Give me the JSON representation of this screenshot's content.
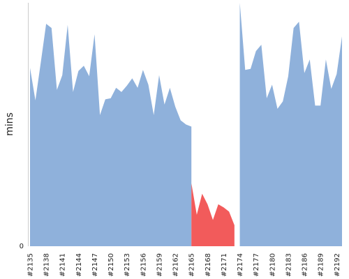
{
  "chart_data": {
    "type": "area",
    "title": "",
    "xlabel": "",
    "ylabel": "mins",
    "y_ticks": [
      {
        "value": 0,
        "label": "0"
      }
    ],
    "ylim": [
      0,
      232
    ],
    "grid": false,
    "x_tick_labels": [
      {
        "index": 0,
        "label": "#2135"
      },
      {
        "index": 3,
        "label": "#2138"
      },
      {
        "index": 6,
        "label": "#2141"
      },
      {
        "index": 9,
        "label": "#2144"
      },
      {
        "index": 12,
        "label": "#2147"
      },
      {
        "index": 15,
        "label": "#2150"
      },
      {
        "index": 18,
        "label": "#2153"
      },
      {
        "index": 21,
        "label": "#2156"
      },
      {
        "index": 24,
        "label": "#2159"
      },
      {
        "index": 27,
        "label": "#2162"
      },
      {
        "index": 30,
        "label": "#2165"
      },
      {
        "index": 33,
        "label": "#2168"
      },
      {
        "index": 36,
        "label": "#2171"
      },
      {
        "index": 39,
        "label": "#2174"
      },
      {
        "index": 42,
        "label": "#2177"
      },
      {
        "index": 45,
        "label": "#2180"
      },
      {
        "index": 48,
        "label": "#2183"
      },
      {
        "index": 51,
        "label": "#2186"
      },
      {
        "index": 54,
        "label": "#2189"
      },
      {
        "index": 57,
        "label": "#2192"
      }
    ],
    "series": [
      {
        "color": "#8fb1db",
        "values": [
          170,
          139,
          175,
          212,
          208,
          149,
          163,
          211,
          147,
          167,
          172,
          162,
          202,
          125,
          140,
          141,
          151,
          147,
          153,
          160,
          151,
          168,
          154,
          125,
          163,
          135,
          151,
          133,
          120,
          116,
          114,
          null,
          null,
          null,
          null,
          null,
          null,
          null,
          null,
          234,
          168,
          169,
          186,
          192,
          141,
          154,
          131,
          138,
          162,
          208,
          214,
          165,
          178,
          134,
          134,
          178,
          150,
          164,
          200
        ]
      },
      {
        "color": "#f25b5b",
        "values": [
          null,
          null,
          null,
          null,
          null,
          null,
          null,
          null,
          null,
          null,
          null,
          null,
          null,
          null,
          null,
          null,
          null,
          null,
          null,
          null,
          null,
          null,
          null,
          null,
          null,
          null,
          null,
          null,
          null,
          null,
          60,
          30,
          50,
          40,
          25,
          40,
          37,
          33,
          20,
          null,
          null,
          null,
          null,
          null,
          null,
          null,
          null,
          null,
          null,
          null,
          null,
          null,
          null,
          null,
          null,
          null,
          null,
          null,
          null
        ]
      }
    ]
  }
}
